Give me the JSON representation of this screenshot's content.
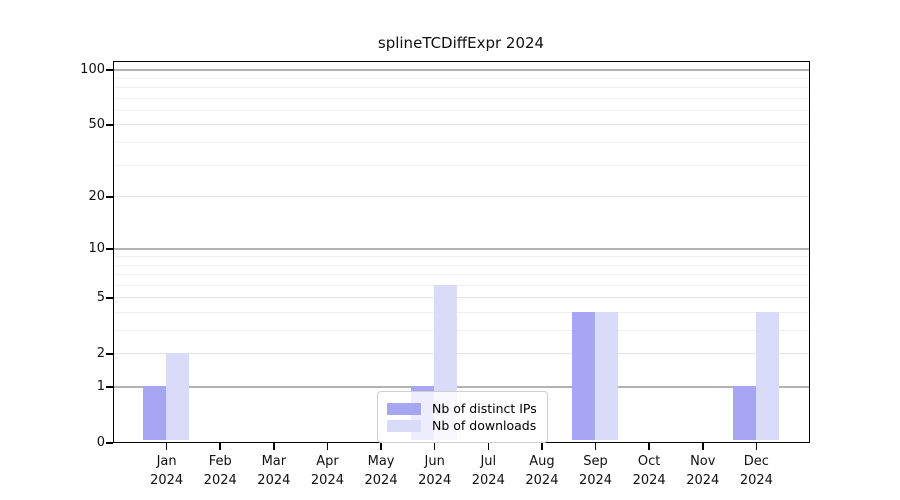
{
  "chart_data": {
    "type": "bar",
    "title": "splineTCDiffExpr 2024",
    "year": "2024",
    "categories": [
      "Jan",
      "Feb",
      "Mar",
      "Apr",
      "May",
      "Jun",
      "Jul",
      "Aug",
      "Sep",
      "Oct",
      "Nov",
      "Dec"
    ],
    "series": [
      {
        "name": "Nb of distinct IPs",
        "color": "#a6a6f3",
        "values": [
          1,
          0,
          0,
          0,
          0,
          1,
          0,
          0,
          4,
          0,
          0,
          1
        ]
      },
      {
        "name": "Nb of downloads",
        "color": "#dadaf9",
        "values": [
          2,
          0,
          0,
          0,
          0,
          6,
          0,
          0,
          4,
          0,
          0,
          4
        ]
      }
    ],
    "xlabel": "",
    "ylabel": "",
    "yscale": "log1p",
    "ylim": [
      0,
      100
    ],
    "yticks": [
      0,
      1,
      2,
      5,
      10,
      20,
      50,
      100
    ],
    "minor_yticks": [
      3,
      4,
      6,
      7,
      8,
      9,
      30,
      40,
      60,
      70,
      80,
      90
    ],
    "decade_yticks": [
      1,
      10,
      100
    ],
    "grid": "horizontal",
    "legend_position": "lower center",
    "colors": {
      "decade_gridline": "#b3b3b3",
      "sub_gridline": "#e3e3e3",
      "minor_gridline": "#efefef",
      "axis": "#000000",
      "background": "#ffffff"
    }
  }
}
